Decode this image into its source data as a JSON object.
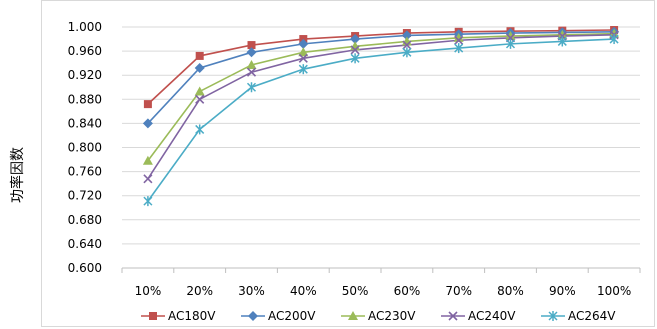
{
  "chart_data": {
    "type": "line",
    "xlabel": "",
    "ylabel": "功率因数",
    "categories": [
      "10%",
      "20%",
      "30%",
      "40%",
      "50%",
      "60%",
      "70%",
      "80%",
      "90%",
      "100%"
    ],
    "ylim": [
      0.6,
      1.0
    ],
    "yticks": [
      "0.600",
      "0.640",
      "0.680",
      "0.720",
      "0.760",
      "0.800",
      "0.840",
      "0.880",
      "0.920",
      "0.960",
      "1.000"
    ],
    "grid": true,
    "legend_position": "bottom",
    "series": [
      {
        "name": "AC180V",
        "color": "#C0504D",
        "marker": "square",
        "values": [
          0.872,
          0.952,
          0.97,
          0.98,
          0.985,
          0.99,
          0.992,
          0.993,
          0.994,
          0.995
        ]
      },
      {
        "name": "AC200V",
        "color": "#4F81BD",
        "marker": "diamond",
        "values": [
          0.84,
          0.932,
          0.958,
          0.972,
          0.98,
          0.986,
          0.988,
          0.99,
          0.991,
          0.992
        ]
      },
      {
        "name": "AC230V",
        "color": "#9BBB59",
        "marker": "triangle",
        "values": [
          0.778,
          0.893,
          0.937,
          0.958,
          0.968,
          0.976,
          0.982,
          0.985,
          0.987,
          0.989
        ]
      },
      {
        "name": "AC240V",
        "color": "#8064A2",
        "marker": "x",
        "values": [
          0.748,
          0.88,
          0.925,
          0.948,
          0.962,
          0.97,
          0.978,
          0.982,
          0.985,
          0.987
        ]
      },
      {
        "name": "AC264V",
        "color": "#4BACC6",
        "marker": "star",
        "values": [
          0.711,
          0.83,
          0.9,
          0.93,
          0.948,
          0.958,
          0.965,
          0.972,
          0.976,
          0.98
        ]
      }
    ]
  }
}
